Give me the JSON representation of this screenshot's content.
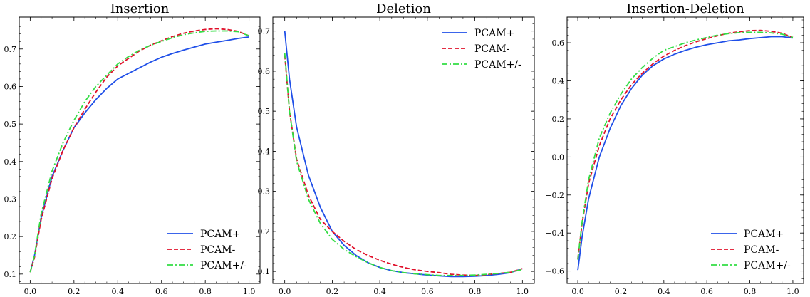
{
  "colors": {
    "PCAM+": "#1f4fe8",
    "PCAM-": "#e0102a",
    "PCAM+/-": "#33dd44"
  },
  "chart_data": [
    {
      "type": "line",
      "title": "Insertion",
      "xlabel": "",
      "ylabel": "",
      "xlim": [
        -0.05,
        1.05
      ],
      "ylim": [
        0.075,
        0.785
      ],
      "xticks": [
        "0.0",
        "0.2",
        "0.4",
        "0.6",
        "0.8",
        "1.0"
      ],
      "yticks": [
        "0.1",
        "0.2",
        "0.3",
        "0.4",
        "0.5",
        "0.6",
        "0.7"
      ],
      "legend_position": "lower-right",
      "grid": false,
      "x": [
        0.0,
        0.02,
        0.05,
        0.1,
        0.15,
        0.2,
        0.25,
        0.3,
        0.35,
        0.4,
        0.45,
        0.5,
        0.55,
        0.6,
        0.65,
        0.7,
        0.75,
        0.8,
        0.85,
        0.9,
        0.95,
        1.0
      ],
      "series": [
        {
          "name": "PCAM+",
          "style": "solid",
          "values": [
            0.105,
            0.15,
            0.25,
            0.36,
            0.43,
            0.49,
            0.53,
            0.565,
            0.595,
            0.62,
            0.635,
            0.65,
            0.665,
            0.678,
            0.688,
            0.697,
            0.705,
            0.713,
            0.718,
            0.723,
            0.728,
            0.732
          ]
        },
        {
          "name": "PCAM-",
          "style": "dashed",
          "values": [
            0.105,
            0.145,
            0.245,
            0.355,
            0.43,
            0.49,
            0.54,
            0.585,
            0.625,
            0.655,
            0.675,
            0.695,
            0.71,
            0.722,
            0.733,
            0.742,
            0.748,
            0.752,
            0.754,
            0.752,
            0.747,
            0.735
          ]
        },
        {
          "name": "PCAM+/-",
          "style": "dashdot",
          "values": [
            0.105,
            0.15,
            0.26,
            0.375,
            0.45,
            0.51,
            0.56,
            0.6,
            0.63,
            0.66,
            0.68,
            0.697,
            0.71,
            0.72,
            0.73,
            0.738,
            0.743,
            0.747,
            0.748,
            0.748,
            0.746,
            0.735
          ]
        }
      ]
    },
    {
      "type": "line",
      "title": "Deletion",
      "xlabel": "",
      "ylabel": "",
      "xlim": [
        -0.05,
        1.05
      ],
      "ylim": [
        0.07,
        0.735
      ],
      "xticks": [
        "0.0",
        "0.2",
        "0.4",
        "0.6",
        "0.8",
        "1.0"
      ],
      "yticks": [
        "0.1",
        "0.2",
        "0.3",
        "0.4",
        "0.5",
        "0.6",
        "0.7"
      ],
      "legend_position": "upper-right",
      "grid": false,
      "x": [
        0.0,
        0.02,
        0.05,
        0.1,
        0.15,
        0.2,
        0.25,
        0.3,
        0.35,
        0.4,
        0.45,
        0.5,
        0.55,
        0.6,
        0.65,
        0.7,
        0.75,
        0.8,
        0.85,
        0.9,
        0.95,
        1.0
      ],
      "series": [
        {
          "name": "PCAM+",
          "style": "solid",
          "values": [
            0.7,
            0.58,
            0.46,
            0.34,
            0.26,
            0.2,
            0.165,
            0.14,
            0.122,
            0.11,
            0.102,
            0.097,
            0.094,
            0.091,
            0.089,
            0.087,
            0.087,
            0.088,
            0.09,
            0.093,
            0.097,
            0.107
          ]
        },
        {
          "name": "PCAM-",
          "style": "dashed",
          "values": [
            0.64,
            0.5,
            0.38,
            0.29,
            0.23,
            0.2,
            0.175,
            0.155,
            0.14,
            0.128,
            0.118,
            0.11,
            0.104,
            0.1,
            0.097,
            0.093,
            0.091,
            0.09,
            0.092,
            0.095,
            0.098,
            0.107
          ]
        },
        {
          "name": "PCAM+/-",
          "style": "dashdot",
          "values": [
            0.645,
            0.5,
            0.375,
            0.28,
            0.22,
            0.18,
            0.155,
            0.137,
            0.122,
            0.11,
            0.102,
            0.097,
            0.094,
            0.092,
            0.09,
            0.09,
            0.09,
            0.091,
            0.093,
            0.095,
            0.098,
            0.105
          ]
        }
      ]
    },
    {
      "type": "line",
      "title": "Insertion-Deletion",
      "xlabel": "",
      "ylabel": "",
      "xlim": [
        -0.05,
        1.05
      ],
      "ylim": [
        -0.665,
        0.735
      ],
      "xticks": [
        "0.0",
        "0.2",
        "0.4",
        "0.6",
        "0.8",
        "1.0"
      ],
      "yticks": [
        "−0.6",
        "−0.4",
        "−0.2",
        "0.0",
        "0.2",
        "0.4",
        "0.6"
      ],
      "legend_position": "lower-right",
      "grid": false,
      "x": [
        0.0,
        0.02,
        0.05,
        0.1,
        0.15,
        0.2,
        0.25,
        0.3,
        0.35,
        0.4,
        0.45,
        0.5,
        0.55,
        0.6,
        0.65,
        0.7,
        0.75,
        0.8,
        0.85,
        0.9,
        0.95,
        1.0
      ],
      "series": [
        {
          "name": "PCAM+",
          "style": "solid",
          "values": [
            -0.595,
            -0.42,
            -0.22,
            0.0,
            0.15,
            0.27,
            0.36,
            0.43,
            0.48,
            0.515,
            0.54,
            0.56,
            0.577,
            0.59,
            0.6,
            0.61,
            0.615,
            0.622,
            0.627,
            0.632,
            0.632,
            0.625
          ]
        },
        {
          "name": "PCAM-",
          "style": "dashed",
          "values": [
            -0.535,
            -0.35,
            -0.14,
            0.06,
            0.2,
            0.3,
            0.38,
            0.44,
            0.49,
            0.53,
            0.56,
            0.585,
            0.605,
            0.622,
            0.637,
            0.65,
            0.658,
            0.664,
            0.665,
            0.66,
            0.65,
            0.628
          ]
        },
        {
          "name": "PCAM+/-",
          "style": "dashdot",
          "values": [
            -0.54,
            -0.34,
            -0.12,
            0.1,
            0.23,
            0.33,
            0.41,
            0.47,
            0.52,
            0.56,
            0.58,
            0.6,
            0.615,
            0.628,
            0.64,
            0.648,
            0.653,
            0.655,
            0.655,
            0.652,
            0.645,
            0.628
          ]
        }
      ]
    }
  ]
}
